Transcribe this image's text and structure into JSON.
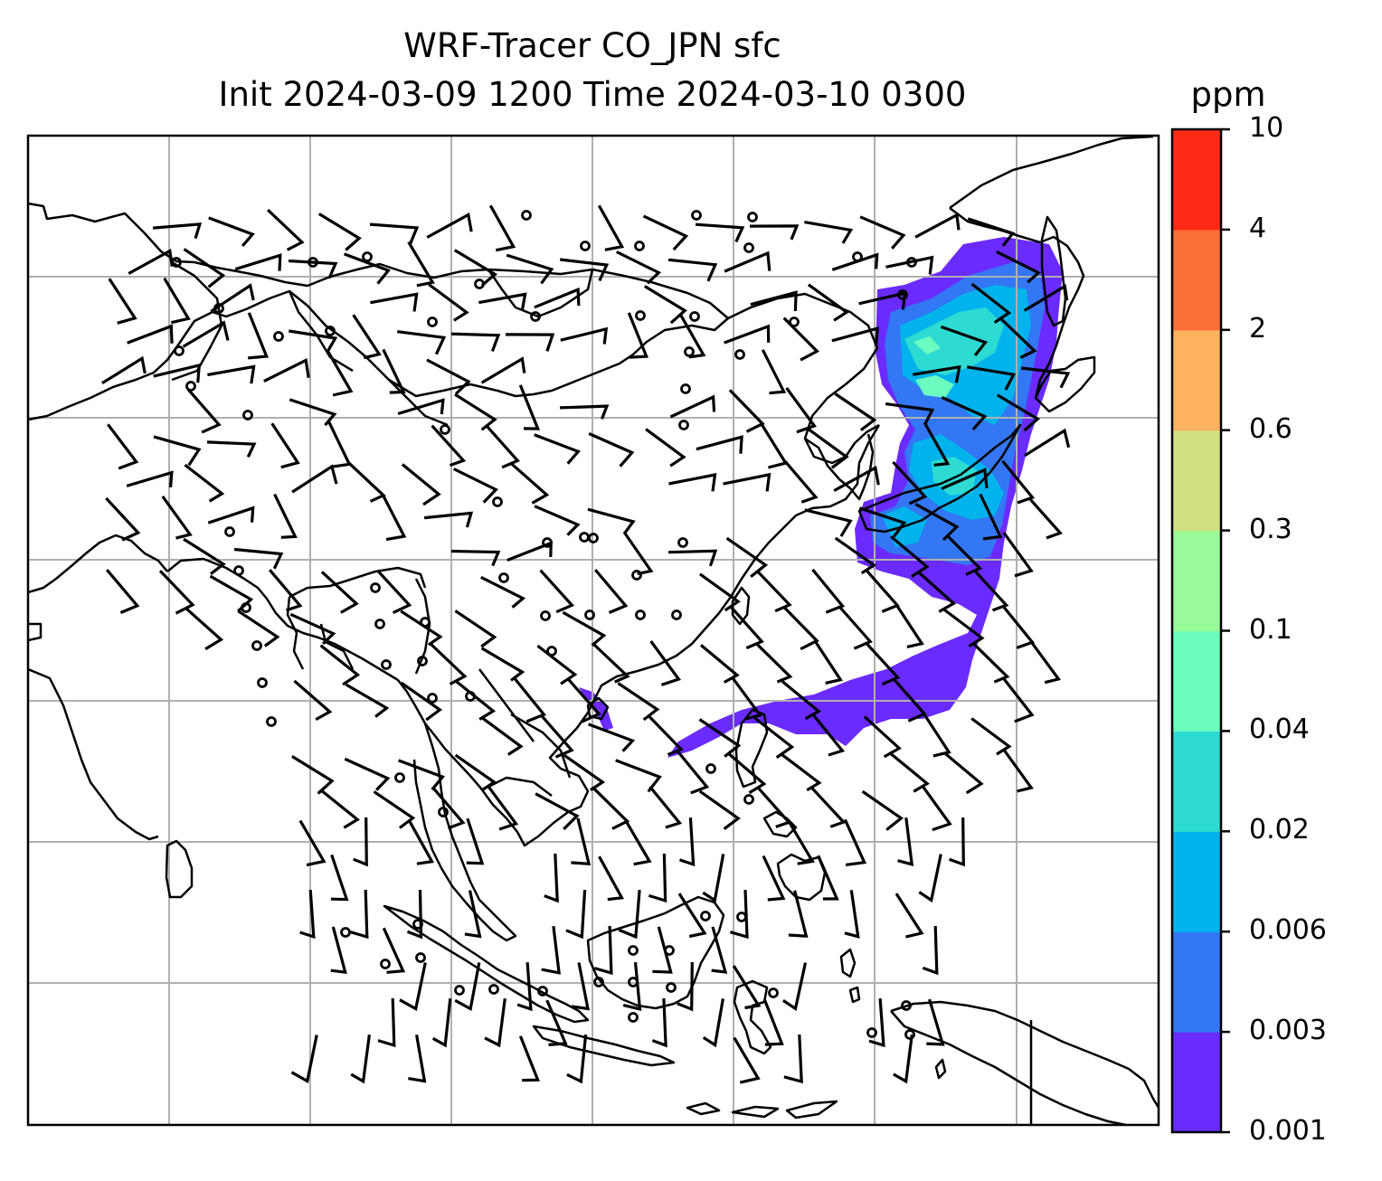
{
  "title": {
    "line1": "WRF-Tracer CO_JPN sfc",
    "line2": "Init 2024-03-09 1200 Time 2024-03-10 0300"
  },
  "colorbar": {
    "units": "ppm",
    "levels": [
      "0.001",
      "0.003",
      "0.006",
      "0.02",
      "0.04",
      "0.1",
      "0.3",
      "0.6",
      "2",
      "4",
      "10"
    ],
    "colors": [
      "#6a2bff",
      "#3377f4",
      "#00b3ec",
      "#2ddbd3",
      "#6cfcc0",
      "#98fa98",
      "#cfe181",
      "#fdb25e",
      "#fe7039",
      "#fd2b15"
    ]
  },
  "map": {
    "gridlines": true,
    "grid_color": "#b0b0b0",
    "coastline_color": "#000000",
    "plume_primary_color": "#6a2bff",
    "plume_inner_colors": [
      "#3377f4",
      "#00b3ec",
      "#2ddbd3",
      "#6cfcc0"
    ]
  }
}
